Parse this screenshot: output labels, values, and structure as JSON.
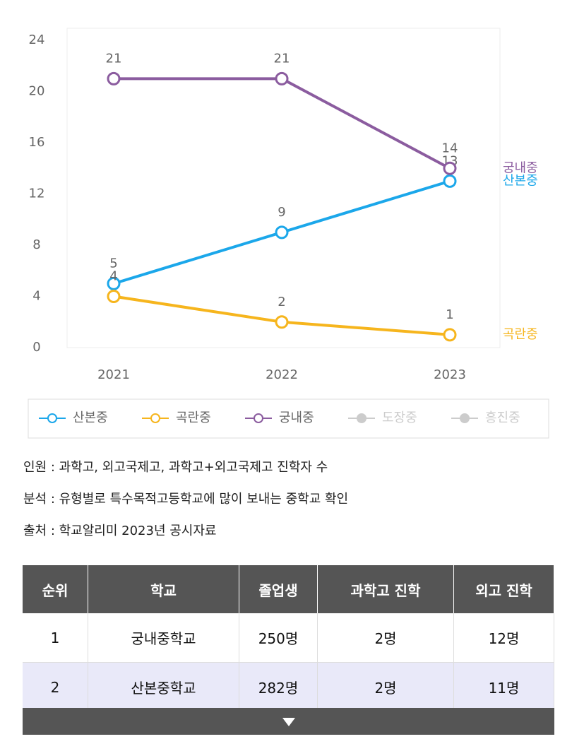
{
  "chart_data": {
    "type": "line",
    "categories": [
      "2021",
      "2022",
      "2023"
    ],
    "series": [
      {
        "name": "산본중",
        "color": "#1ba7ea",
        "values": [
          5,
          9,
          13
        ]
      },
      {
        "name": "곡란중",
        "color": "#f6b51d",
        "values": [
          4,
          2,
          1
        ]
      },
      {
        "name": "궁내중",
        "color": "#8b5c9f",
        "values": [
          21,
          21,
          14
        ]
      },
      {
        "name": "도장중",
        "color": "#cccccc",
        "values": [
          null,
          null,
          null
        ],
        "hidden": true
      },
      {
        "name": "흥진중",
        "color": "#cccccc",
        "values": [
          null,
          null,
          null
        ],
        "hidden": true
      }
    ],
    "ylim": [
      0,
      24
    ],
    "yticks": [
      0,
      4,
      8,
      12,
      16,
      20,
      24
    ],
    "grid": false,
    "legend": "bottom"
  },
  "notes": [
    "인원 : 과학고, 외고국제고, 과학고+외고국제고 진학자 수",
    "분석 : 유형별로 특수목적고등학교에 많이 보내는 중학교 확인",
    "출처 : 학교알리미 2023년 공시자료"
  ],
  "table": {
    "header": [
      "순위",
      "학교",
      "졸업생",
      "과학고 진학",
      "외고 진학"
    ],
    "rows": [
      [
        "1",
        "궁내중학교",
        "250명",
        "2명",
        "12명"
      ],
      [
        "2",
        "산본중학교",
        "282명",
        "2명",
        "11명"
      ]
    ]
  }
}
